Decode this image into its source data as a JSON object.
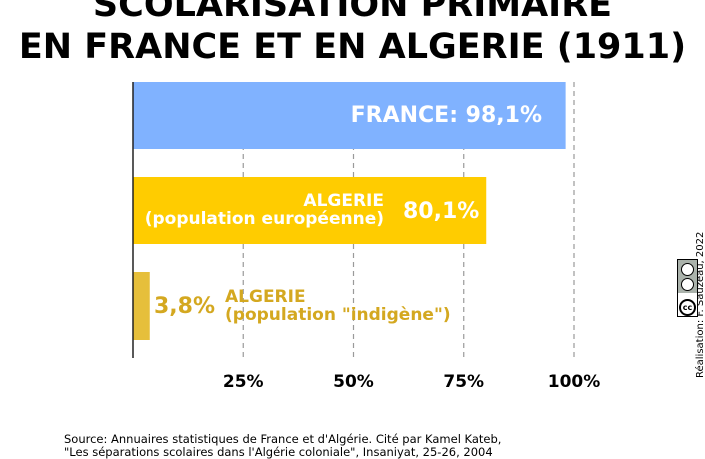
{
  "title": {
    "line1": "SCOLARISATION PRIMAIRE",
    "line2": "EN FRANCE ET EN ALGERIE (1911)"
  },
  "chart_data": {
    "type": "bar",
    "orientation": "horizontal",
    "categories": [
      "FRANCE",
      "ALGERIE (population européenne)",
      "ALGERIE (population \"indigène\")"
    ],
    "values": [
      98.1,
      80.1,
      3.8
    ],
    "xlim": [
      0,
      100
    ],
    "xticks": [
      "25%",
      "50%",
      "75%",
      "100%"
    ],
    "xtick_values": [
      25,
      50,
      75,
      100
    ],
    "grid": "vertical dashed",
    "bars": [
      {
        "label": "FRANCE: 98,1%",
        "value": 98.1,
        "color": "#80b2ff",
        "label_color": "#ffffff"
      },
      {
        "label_lines": [
          "ALGERIE",
          "(population européenne)"
        ],
        "value_label": "80,1%",
        "value": 80.1,
        "color": "#ffcc00",
        "label_color": "#ffffff"
      },
      {
        "label_lines": [
          "ALGERIE",
          "(population \"indigène\")"
        ],
        "value_label": "3,8%",
        "value": 3.8,
        "color": "#e6bf3b",
        "label_color": "#d4a820"
      }
    ]
  },
  "source": {
    "line1": "Source: Annuaires statistiques de France et d'Algérie. Cité par Kamel Kateb,",
    "line2": "\"Les séparations scolaires dans l'Algérie coloniale\", Insaniyat, 25-26, 2004"
  },
  "credit": "Réalisation: F. Sauzeau, 2022",
  "license": {
    "icon": "creative-commons-icon",
    "text": "cc"
  }
}
